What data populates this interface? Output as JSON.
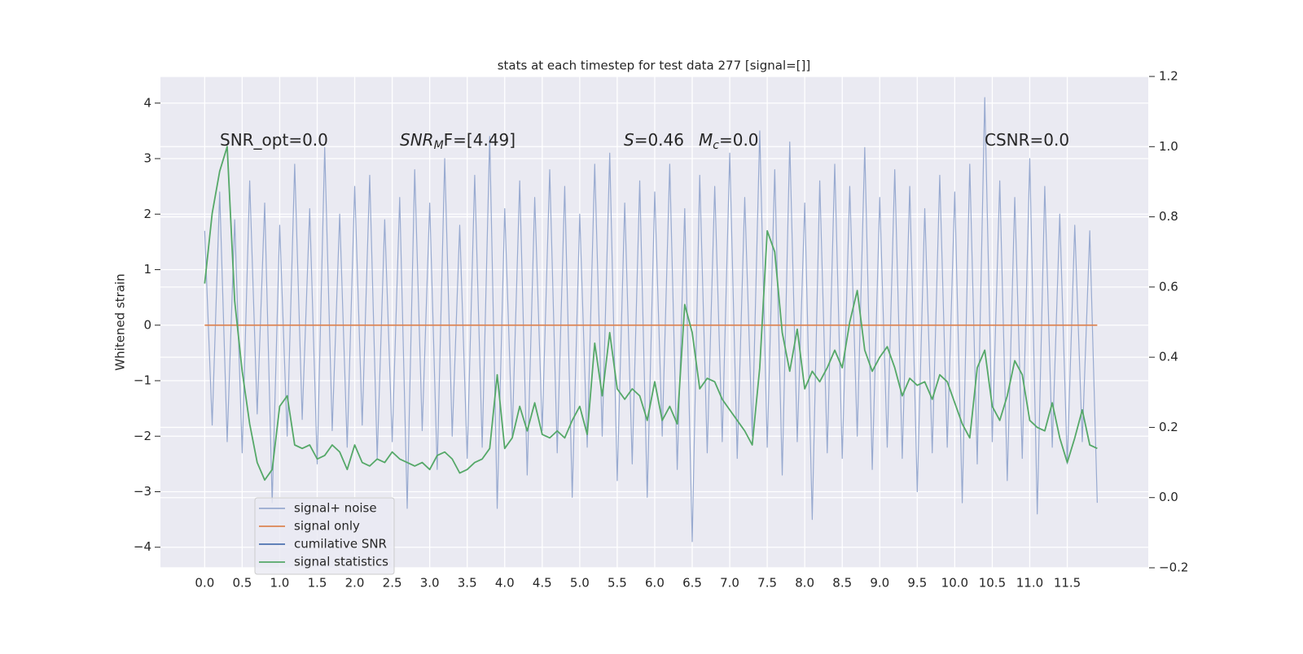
{
  "chart_data": {
    "type": "line",
    "title": "stats at each timestep for test data 277 [signal=[]]",
    "y_label": "Whitened strain",
    "annotations": [
      [
        "SNR_opt=0.0"
      ],
      [
        "SNR",
        "M",
        "F=[4.49]"
      ],
      [
        "S",
        "=0.46"
      ],
      [
        "M",
        "c",
        "=0.0"
      ],
      [
        "CSNR=0.0"
      ]
    ],
    "x": [
      0,
      0.1,
      0.2,
      0.3,
      0.4,
      0.5,
      0.6,
      0.7,
      0.8,
      0.9,
      1,
      1.1,
      1.2,
      1.3,
      1.4,
      1.5,
      1.6,
      1.7,
      1.8,
      1.9,
      2,
      2.1,
      2.2,
      2.3,
      2.4,
      2.5,
      2.6,
      2.7,
      2.8,
      2.9,
      3,
      3.1,
      3.2,
      3.3,
      3.4,
      3.5,
      3.6,
      3.7,
      3.8,
      3.9,
      4,
      4.1,
      4.2,
      4.3,
      4.4,
      4.5,
      4.6,
      4.7,
      4.8,
      4.9,
      5,
      5.1,
      5.2,
      5.3,
      5.4,
      5.5,
      5.6,
      5.7,
      5.8,
      5.9,
      6,
      6.1,
      6.2,
      6.3,
      6.4,
      6.5,
      6.6,
      6.7,
      6.8,
      6.9,
      7,
      7.1,
      7.2,
      7.3,
      7.4,
      7.5,
      7.6,
      7.7,
      7.8,
      7.9,
      8,
      8.1,
      8.2,
      8.3,
      8.4,
      8.5,
      8.6,
      8.7,
      8.8,
      8.9,
      9,
      9.1,
      9.2,
      9.3,
      9.4,
      9.5,
      9.6,
      9.7,
      9.8,
      9.9,
      10,
      10.1,
      10.2,
      10.3,
      10.4,
      10.5,
      10.6,
      10.7,
      10.8,
      10.9,
      11,
      11.1,
      11.2,
      11.3,
      11.4,
      11.5,
      11.6,
      11.7,
      11.8,
      11.9
    ],
    "series": [
      {
        "name": "signal+ noise",
        "color": "#98aad0",
        "values": [
          1.7,
          -1.8,
          2.4,
          -2.1,
          1.9,
          -2.3,
          2.6,
          -1.6,
          2.2,
          -3.2,
          1.8,
          -2.0,
          2.9,
          -1.7,
          2.1,
          -2.5,
          3.2,
          -1.9,
          2.0,
          -2.2,
          2.5,
          -1.8,
          2.7,
          -2.4,
          1.9,
          -2.1,
          2.3,
          -3.3,
          2.8,
          -1.9,
          2.2,
          -2.6,
          3.0,
          -2.0,
          1.8,
          -2.4,
          2.7,
          -2.2,
          3.4,
          -3.3,
          2.1,
          -2.0,
          2.6,
          -2.7,
          2.3,
          -1.9,
          2.8,
          -2.3,
          2.5,
          -3.1,
          2.0,
          -2.2,
          2.9,
          -2.0,
          3.1,
          -2.8,
          2.2,
          -2.5,
          2.6,
          -3.1,
          2.4,
          -2.0,
          2.9,
          -2.6,
          2.1,
          -3.9,
          2.7,
          -2.3,
          2.5,
          -2.1,
          3.1,
          -2.4,
          2.3,
          -2.0,
          3.5,
          -2.2,
          2.8,
          -2.7,
          3.3,
          -2.1,
          2.2,
          -3.5,
          2.6,
          -2.3,
          2.9,
          -2.4,
          2.5,
          -2.0,
          3.2,
          -2.6,
          2.3,
          -2.2,
          2.8,
          -2.4,
          2.5,
          -3.0,
          2.1,
          -2.3,
          2.7,
          -2.2,
          2.4,
          -3.2,
          2.9,
          -2.5,
          4.1,
          -2.1,
          2.6,
          -2.8,
          2.3,
          -2.4,
          3.0,
          -3.4,
          2.5,
          -2.2,
          2.0,
          -2.5,
          1.8,
          -2.1,
          1.7,
          -3.2
        ]
      },
      {
        "name": "signal only",
        "color": "#dd8452",
        "values": [
          0,
          0,
          0,
          0,
          0,
          0,
          0,
          0,
          0,
          0,
          0,
          0,
          0,
          0,
          0,
          0,
          0,
          0,
          0,
          0,
          0,
          0,
          0,
          0,
          0,
          0,
          0,
          0,
          0,
          0,
          0,
          0,
          0,
          0,
          0,
          0,
          0,
          0,
          0,
          0,
          0,
          0,
          0,
          0,
          0,
          0,
          0,
          0,
          0,
          0,
          0,
          0,
          0,
          0,
          0,
          0,
          0,
          0,
          0,
          0,
          0,
          0,
          0,
          0,
          0,
          0,
          0,
          0,
          0,
          0,
          0,
          0,
          0,
          0,
          0,
          0,
          0,
          0,
          0,
          0,
          0,
          0,
          0,
          0,
          0,
          0,
          0,
          0,
          0,
          0,
          0,
          0,
          0,
          0,
          0,
          0,
          0,
          0,
          0,
          0,
          0,
          0,
          0,
          0,
          0,
          0,
          0,
          0,
          0,
          0,
          0,
          0,
          0,
          0,
          0,
          0,
          0,
          0,
          0,
          0
        ]
      },
      {
        "name": "cumilative SNR",
        "color": "#4c72b0"
      },
      {
        "name": "signal statistics",
        "color": "#55a868",
        "axis": "y2",
        "values": [
          0.61,
          0.81,
          0.93,
          1.0,
          0.56,
          0.36,
          0.21,
          0.1,
          0.05,
          0.08,
          0.26,
          0.29,
          0.15,
          0.14,
          0.15,
          0.11,
          0.12,
          0.15,
          0.13,
          0.08,
          0.15,
          0.1,
          0.09,
          0.11,
          0.1,
          0.13,
          0.11,
          0.1,
          0.09,
          0.1,
          0.08,
          0.12,
          0.13,
          0.11,
          0.07,
          0.08,
          0.1,
          0.11,
          0.14,
          0.35,
          0.14,
          0.17,
          0.26,
          0.19,
          0.27,
          0.18,
          0.17,
          0.19,
          0.17,
          0.22,
          0.26,
          0.18,
          0.44,
          0.29,
          0.47,
          0.31,
          0.28,
          0.31,
          0.29,
          0.22,
          0.33,
          0.22,
          0.26,
          0.21,
          0.55,
          0.47,
          0.31,
          0.34,
          0.33,
          0.28,
          0.25,
          0.22,
          0.19,
          0.15,
          0.37,
          0.76,
          0.7,
          0.47,
          0.36,
          0.48,
          0.31,
          0.36,
          0.33,
          0.37,
          0.42,
          0.37,
          0.5,
          0.59,
          0.42,
          0.36,
          0.4,
          0.43,
          0.37,
          0.29,
          0.34,
          0.32,
          0.33,
          0.28,
          0.35,
          0.33,
          0.27,
          0.21,
          0.17,
          0.37,
          0.42,
          0.26,
          0.22,
          0.29,
          0.39,
          0.35,
          0.22,
          0.2,
          0.19,
          0.27,
          0.17,
          0.1,
          0.17,
          0.25,
          0.15,
          0.14
        ]
      }
    ],
    "xlim": [
      -0.59,
      12.58
    ],
    "ylim": [
      -4.37,
      4.48
    ],
    "y2lim": [
      -0.2,
      1.2
    ],
    "xticks": [
      {
        "value": 0,
        "label": "0.0"
      },
      {
        "value": 0.5,
        "label": "0.5"
      },
      {
        "value": 1,
        "label": "1.0"
      },
      {
        "value": 1.5,
        "label": "1.5"
      },
      {
        "value": 2,
        "label": "2.0"
      },
      {
        "value": 2.5,
        "label": "2.5"
      },
      {
        "value": 3,
        "label": "3.0"
      },
      {
        "value": 3.5,
        "label": "3.5"
      },
      {
        "value": 4,
        "label": "4.0"
      },
      {
        "value": 4.5,
        "label": "4.5"
      },
      {
        "value": 5,
        "label": "5.0"
      },
      {
        "value": 5.5,
        "label": "5.5"
      },
      {
        "value": 6,
        "label": "6.0"
      },
      {
        "value": 6.5,
        "label": "6.5"
      },
      {
        "value": 7,
        "label": "7.0"
      },
      {
        "value": 7.5,
        "label": "7.5"
      },
      {
        "value": 8,
        "label": "8.0"
      },
      {
        "value": 8.5,
        "label": "8.5"
      },
      {
        "value": 9,
        "label": "9.0"
      },
      {
        "value": 9.5,
        "label": "9.5"
      },
      {
        "value": 10,
        "label": "10.0"
      },
      {
        "value": 10.5,
        "label": "10.5"
      },
      {
        "value": 11,
        "label": "11.0"
      },
      {
        "value": 11.5,
        "label": "11.5"
      }
    ],
    "yticks": [
      {
        "value": -4,
        "label": "−4"
      },
      {
        "value": -3,
        "label": "−3"
      },
      {
        "value": -2,
        "label": "−2"
      },
      {
        "value": -1,
        "label": "−1"
      },
      0,
      1,
      2,
      3,
      4
    ],
    "y2ticks": [
      {
        "value": -0.2,
        "label": "−0.2"
      },
      {
        "value": 0,
        "label": "0.0"
      },
      {
        "value": 0.2,
        "label": "0.2"
      },
      {
        "value": 0.4,
        "label": "0.4"
      },
      {
        "value": 0.6,
        "label": "0.6"
      },
      {
        "value": 0.8,
        "label": "0.8"
      },
      {
        "value": 1,
        "label": "1.0"
      },
      {
        "value": 1.2,
        "label": "1.2"
      }
    ],
    "grid": true,
    "legend": "lower left"
  }
}
